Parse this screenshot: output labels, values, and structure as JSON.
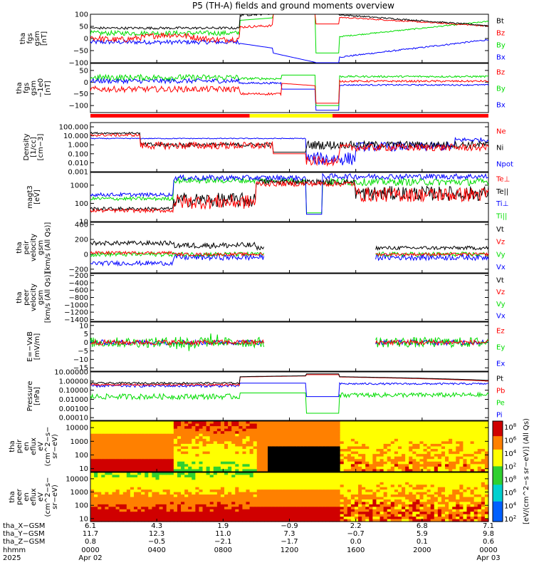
{
  "title": "P5 (TH-A) fields and ground moments overview",
  "chart_data": [
    {
      "type": "line",
      "ylabel": [
        "tha",
        "fgs",
        "gsm",
        "[nT]"
      ],
      "ylim": [
        -100,
        100
      ],
      "yticks": [
        {
          "v": 100,
          "t": "100"
        },
        {
          "v": 50,
          "t": "50"
        },
        {
          "v": 0,
          "t": "0"
        },
        {
          "v": -50,
          "t": "−50"
        },
        {
          "v": -100,
          "t": "−100"
        }
      ],
      "legend": [
        {
          "name": "Bt",
          "color": "#000000"
        },
        {
          "name": "Bz",
          "color": "#ff0000"
        },
        {
          "name": "By",
          "color": "#00dd00"
        },
        {
          "name": "Bx",
          "color": "#0000ff"
        }
      ]
    },
    {
      "type": "line",
      "ylabel": [
        "tha",
        "fgs",
        "gsm",
        "−1e0",
        "[nT]"
      ],
      "ylim": [
        -130,
        80
      ],
      "yticks": [
        {
          "v": 50,
          "t": "50"
        },
        {
          "v": 0,
          "t": "0"
        },
        {
          "v": -50,
          "t": "−50"
        },
        {
          "v": -100,
          "t": "−100"
        }
      ],
      "legend": [
        {
          "name": "Bz",
          "color": "#ff0000"
        },
        {
          "name": "By",
          "color": "#00dd00"
        },
        {
          "name": "Bx",
          "color": "#0000ff"
        }
      ]
    },
    {
      "type": "bar",
      "segments": [
        {
          "from": 0.0,
          "to": 9.6,
          "color": "#ff0000"
        },
        {
          "from": 9.6,
          "to": 14.6,
          "color": "#ffff00"
        },
        {
          "from": 14.6,
          "to": 24.0,
          "color": "#ff0000"
        }
      ]
    },
    {
      "type": "line",
      "ylabel": [
        "Density",
        "[1/cc]",
        "[cm−3]"
      ],
      "log": true,
      "ylim": [
        0.001,
        300
      ],
      "yticks": [
        {
          "v": 100,
          "t": "100.000"
        },
        {
          "v": 10,
          "t": "10.000"
        },
        {
          "v": 1,
          "t": "1.000"
        },
        {
          "v": 0.1,
          "t": "0.100"
        },
        {
          "v": 0.01,
          "t": "0.010"
        },
        {
          "v": 0.001,
          "t": "0.001"
        }
      ],
      "legend": [
        {
          "name": "Ne",
          "color": "#ff0000"
        },
        {
          "name": "Ni",
          "color": "#000000"
        },
        {
          "name": "Npot",
          "color": "#0000ff"
        }
      ]
    },
    {
      "type": "line",
      "ylabel": [
        "magt3",
        "[eV]"
      ],
      "log": true,
      "ylim": [
        10,
        5000
      ],
      "yticks": [
        {
          "v": 1000,
          "t": "1000"
        },
        {
          "v": 100,
          "t": "100"
        },
        {
          "v": 10,
          "t": "10"
        }
      ],
      "legend": [
        {
          "name": "Te⊥",
          "color": "#ff0000"
        },
        {
          "name": "Te||",
          "color": "#000000"
        },
        {
          "name": "Ti⊥",
          "color": "#0000ff"
        },
        {
          "name": "Ti||",
          "color": "#00dd00"
        }
      ]
    },
    {
      "type": "line",
      "ylabel": [
        "tha",
        "peir",
        "velocity",
        "gsm",
        "[km/s (All Qs)]"
      ],
      "ylim": [
        -250,
        430
      ],
      "yticks": [
        {
          "v": 400,
          "t": "400"
        },
        {
          "v": 200,
          "t": "200"
        },
        {
          "v": 0,
          "t": "0"
        },
        {
          "v": -200,
          "t": "−200"
        }
      ],
      "legend": [
        {
          "name": "Vt",
          "color": "#000000"
        },
        {
          "name": "Vz",
          "color": "#ff0000"
        },
        {
          "name": "Vy",
          "color": "#00dd00"
        },
        {
          "name": "Vx",
          "color": "#0000ff"
        }
      ]
    },
    {
      "type": "line",
      "ylabel": [
        "tha",
        "peer",
        "velocity",
        "gsm",
        "[km/s (All Qs)]"
      ],
      "ylim": [
        -1450,
        -150
      ],
      "yticks": [
        {
          "v": -200,
          "t": "−200"
        },
        {
          "v": -400,
          "t": "−400"
        },
        {
          "v": -600,
          "t": "−600"
        },
        {
          "v": -800,
          "t": "−800"
        },
        {
          "v": -1000,
          "t": "−1000"
        },
        {
          "v": -1200,
          "t": "−1200"
        },
        {
          "v": -1400,
          "t": "−1400"
        }
      ],
      "legend": [
        {
          "name": "Vt",
          "color": "#000000"
        },
        {
          "name": "Vz",
          "color": "#ff0000"
        },
        {
          "name": "Vy",
          "color": "#00dd00"
        },
        {
          "name": "Vx",
          "color": "#0000ff"
        }
      ]
    },
    {
      "type": "line",
      "ylabel": [
        "E=−VxB",
        "[mV/m]"
      ],
      "ylim": [
        -17,
        12
      ],
      "yticks": [
        {
          "v": 10,
          "t": "10"
        },
        {
          "v": 5,
          "t": "5"
        },
        {
          "v": 0,
          "t": "0"
        },
        {
          "v": -5,
          "t": "−5"
        },
        {
          "v": -10,
          "t": "−10"
        },
        {
          "v": -15,
          "t": "−15"
        }
      ],
      "legend": [
        {
          "name": "Ez",
          "color": "#ff0000"
        },
        {
          "name": "Ey",
          "color": "#00dd00"
        },
        {
          "name": "Ex",
          "color": "#0000ff"
        }
      ]
    },
    {
      "type": "line",
      "ylabel": [
        "Pressure",
        "[nPa]"
      ],
      "log": true,
      "ylim": [
        5e-05,
        10
      ],
      "yticks": [
        {
          "v": 10,
          "t": "10.00000"
        },
        {
          "v": 1,
          "t": "1.00000"
        },
        {
          "v": 0.1,
          "t": "0.10000"
        },
        {
          "v": 0.01,
          "t": "0.01000"
        },
        {
          "v": 0.001,
          "t": "0.00100"
        },
        {
          "v": 0.0001,
          "t": "0.00010"
        }
      ],
      "legend": [
        {
          "name": "Pt",
          "color": "#000000"
        },
        {
          "name": "Pb",
          "color": "#ff0000"
        },
        {
          "name": "Pe",
          "color": "#00dd00"
        },
        {
          "name": "Pi",
          "color": "#0000ff"
        }
      ]
    },
    {
      "type": "heatmap",
      "ylabel": [
        "tha",
        "peir",
        "en",
        "eflux",
        "eV",
        "(cm^2−s−",
        "sr−eV)"
      ],
      "log": true,
      "ylim": [
        6,
        30000
      ],
      "yticks": [
        {
          "v": 10000,
          "t": "10000"
        },
        {
          "v": 1000,
          "t": "1000"
        },
        {
          "v": 100,
          "t": "100"
        },
        {
          "v": 10,
          "t": "10"
        }
      ]
    },
    {
      "type": "heatmap",
      "ylabel": [
        "tha",
        "peer",
        "en",
        "eflux",
        "eV",
        "(cm^2−s−",
        "sr−eV)"
      ],
      "log": true,
      "ylim": [
        6,
        30000
      ],
      "yticks": [
        {
          "v": 10000,
          "t": "10000"
        },
        {
          "v": 1000,
          "t": "1000"
        },
        {
          "v": 100,
          "t": "100"
        },
        {
          "v": 10,
          "t": "10"
        }
      ]
    }
  ],
  "colorbar": {
    "label": "[eV/(cm^2−s sr−eV)] (All Qs)",
    "ticks": [
      "10^8",
      "10^6",
      "10^4",
      "10^2",
      "10^8",
      "10^6",
      "10^4",
      "10^2"
    ]
  },
  "x_axis": {
    "hour_ticks": [
      "0000",
      "0400",
      "0800",
      "1200",
      "1600",
      "2000",
      "0000"
    ],
    "date_labels": [
      {
        "at": 0,
        "t": "Apr 02"
      },
      {
        "at": 24,
        "t": "Apr 03"
      }
    ],
    "rows": [
      {
        "label": "tha_X−GSM",
        "values": [
          "6.1",
          "4.3",
          "1.9",
          "−0.9",
          "2.2",
          "6.8",
          "7.1"
        ]
      },
      {
        "label": "tha_Y−GSM",
        "values": [
          "11.7",
          "12.3",
          "11.0",
          "7.3",
          "−0.7",
          "5.9",
          "9.8"
        ]
      },
      {
        "label": "tha_Z−GSM",
        "values": [
          "0.8",
          "−0.5",
          "−2.1",
          "−1.7",
          "0.0",
          "0.1",
          "0.6"
        ]
      },
      {
        "label": "hhmm",
        "values": []
      },
      {
        "label": "2025",
        "values": []
      }
    ]
  }
}
